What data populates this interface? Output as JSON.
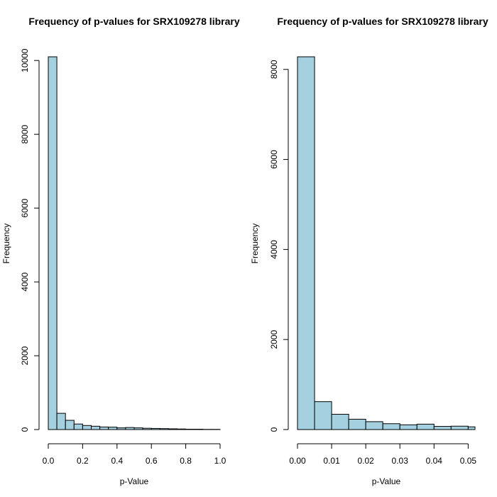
{
  "colors": {
    "bar_fill": "#A4D0DF",
    "bar_stroke": "#000000"
  },
  "chart_data": [
    {
      "type": "bar",
      "title": "Frequency of p-values for SRX109278 library",
      "xlabel": "p-Value",
      "ylabel": "Frequency",
      "bin_edges": [
        0,
        0.05,
        0.1,
        0.15,
        0.2,
        0.25,
        0.3,
        0.35,
        0.4,
        0.45,
        0.5,
        0.55,
        0.6,
        0.65,
        0.7,
        0.75,
        0.8,
        0.85,
        0.9,
        0.95,
        1.0
      ],
      "values": [
        10100,
        440,
        250,
        150,
        110,
        90,
        70,
        65,
        45,
        55,
        45,
        35,
        30,
        25,
        20,
        15,
        10,
        10,
        5,
        5
      ],
      "xlim": [
        0,
        1.0
      ],
      "ylim": [
        0,
        10100
      ],
      "xticks": [
        0.0,
        0.2,
        0.4,
        0.6,
        0.8,
        1.0
      ],
      "xtick_labels": [
        "0.0",
        "0.2",
        "0.4",
        "0.6",
        "0.8",
        "1.0"
      ],
      "yticks": [
        0,
        2000,
        4000,
        6000,
        8000,
        10000
      ],
      "ytick_labels": [
        "0",
        "2000",
        "4000",
        "6000",
        "8000",
        "10000"
      ],
      "grid": false
    },
    {
      "type": "bar",
      "title": "Frequency of p-values for SRX109278 library",
      "xlabel": "p-Value",
      "ylabel": "Frequency",
      "bin_edges": [
        0,
        0.005,
        0.01,
        0.015,
        0.02,
        0.025,
        0.03,
        0.035,
        0.04,
        0.045,
        0.05,
        0.055
      ],
      "values": [
        8280,
        620,
        340,
        230,
        175,
        130,
        105,
        120,
        70,
        75,
        60
      ],
      "xlim": [
        0,
        0.052
      ],
      "ylim": [
        0,
        8280
      ],
      "xticks": [
        0.0,
        0.01,
        0.02,
        0.03,
        0.04,
        0.05
      ],
      "xtick_labels": [
        "0.00",
        "0.01",
        "0.02",
        "0.03",
        "0.04",
        "0.05"
      ],
      "yticks": [
        0,
        2000,
        4000,
        6000,
        8000
      ],
      "ytick_labels": [
        "0",
        "2000",
        "4000",
        "6000",
        "8000"
      ],
      "grid": false
    }
  ]
}
